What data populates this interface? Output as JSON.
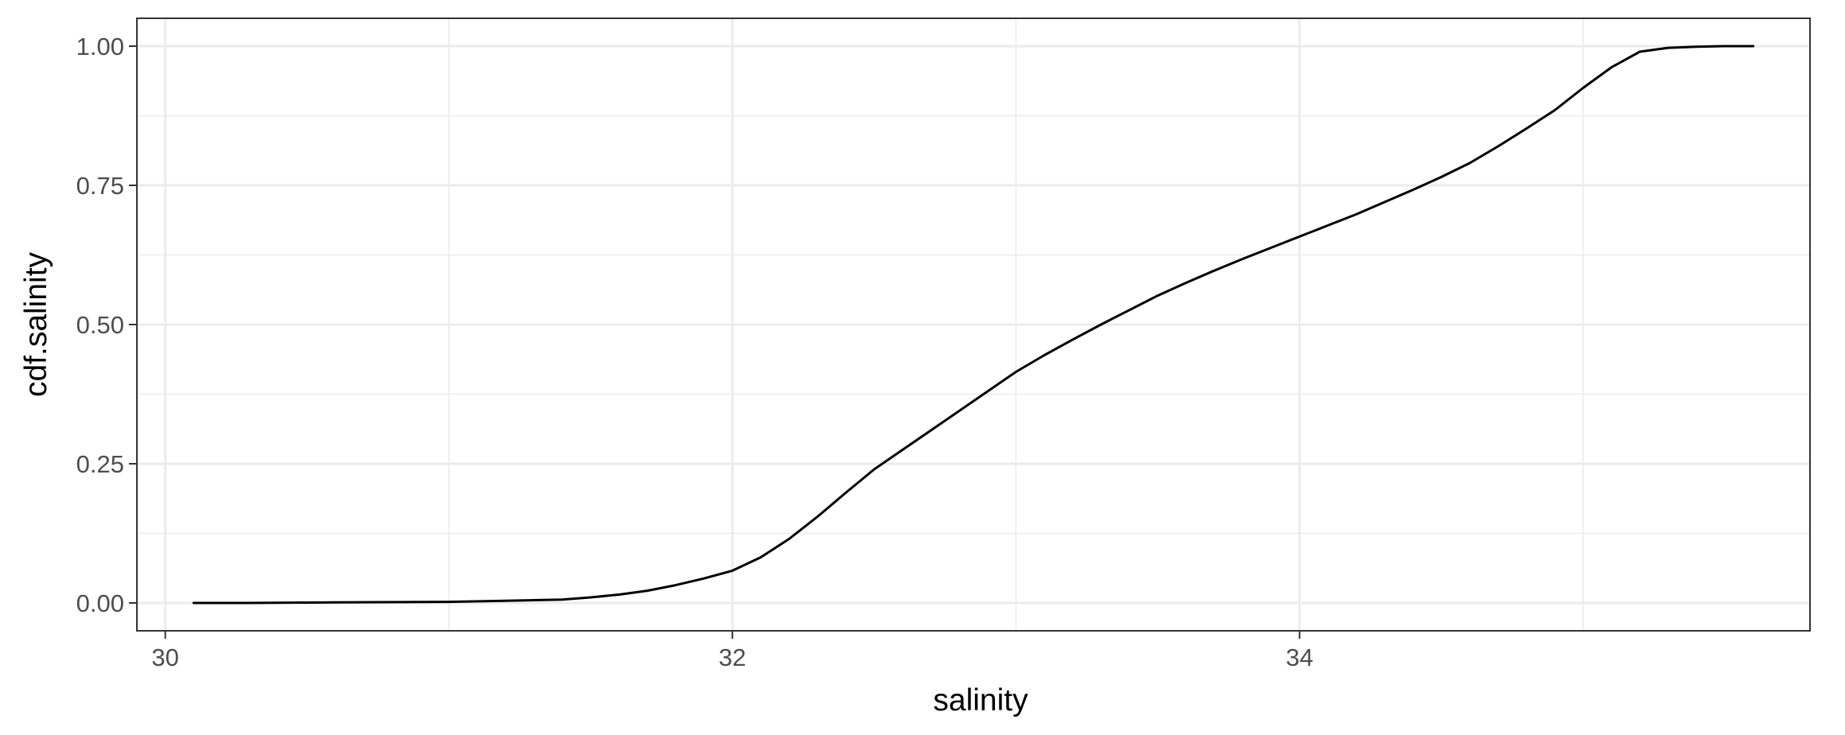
{
  "chart_data": {
    "type": "line",
    "title": "",
    "xlabel": "salinity",
    "ylabel": "cdf.salinity",
    "xlim": [
      29.9,
      35.8
    ],
    "ylim": [
      -0.05,
      1.05
    ],
    "x_ticks": [
      30,
      32,
      34
    ],
    "x_tick_labels": [
      "30",
      "32",
      "34"
    ],
    "y_ticks": [
      0,
      0.25,
      0.5,
      0.75,
      1.0
    ],
    "y_tick_labels": [
      "0.00",
      "0.25",
      "0.50",
      "0.75",
      "1.00"
    ],
    "grid": true,
    "legend": "none",
    "series": [
      {
        "color": "#000000",
        "x": [
          30.1,
          30.3,
          30.6,
          31.0,
          31.2,
          31.4,
          31.5,
          31.6,
          31.7,
          31.8,
          31.9,
          32.0,
          32.1,
          32.2,
          32.3,
          32.4,
          32.5,
          32.6,
          32.7,
          32.8,
          32.9,
          33.0,
          33.1,
          33.2,
          33.3,
          33.4,
          33.5,
          33.6,
          33.7,
          33.8,
          33.9,
          34.0,
          34.1,
          34.2,
          34.3,
          34.4,
          34.5,
          34.6,
          34.7,
          34.8,
          34.9,
          35.0,
          35.1,
          35.2,
          35.3,
          35.4,
          35.5,
          35.6
        ],
        "y": [
          0.0,
          0.0,
          0.001,
          0.002,
          0.004,
          0.006,
          0.01,
          0.015,
          0.022,
          0.032,
          0.044,
          0.058,
          0.082,
          0.115,
          0.155,
          0.198,
          0.24,
          0.275,
          0.31,
          0.345,
          0.38,
          0.415,
          0.445,
          0.473,
          0.5,
          0.526,
          0.552,
          0.575,
          0.597,
          0.618,
          0.638,
          0.658,
          0.678,
          0.698,
          0.72,
          0.742,
          0.765,
          0.79,
          0.82,
          0.852,
          0.885,
          0.925,
          0.962,
          0.99,
          0.997,
          0.999,
          1.0,
          1.0
        ]
      }
    ]
  }
}
